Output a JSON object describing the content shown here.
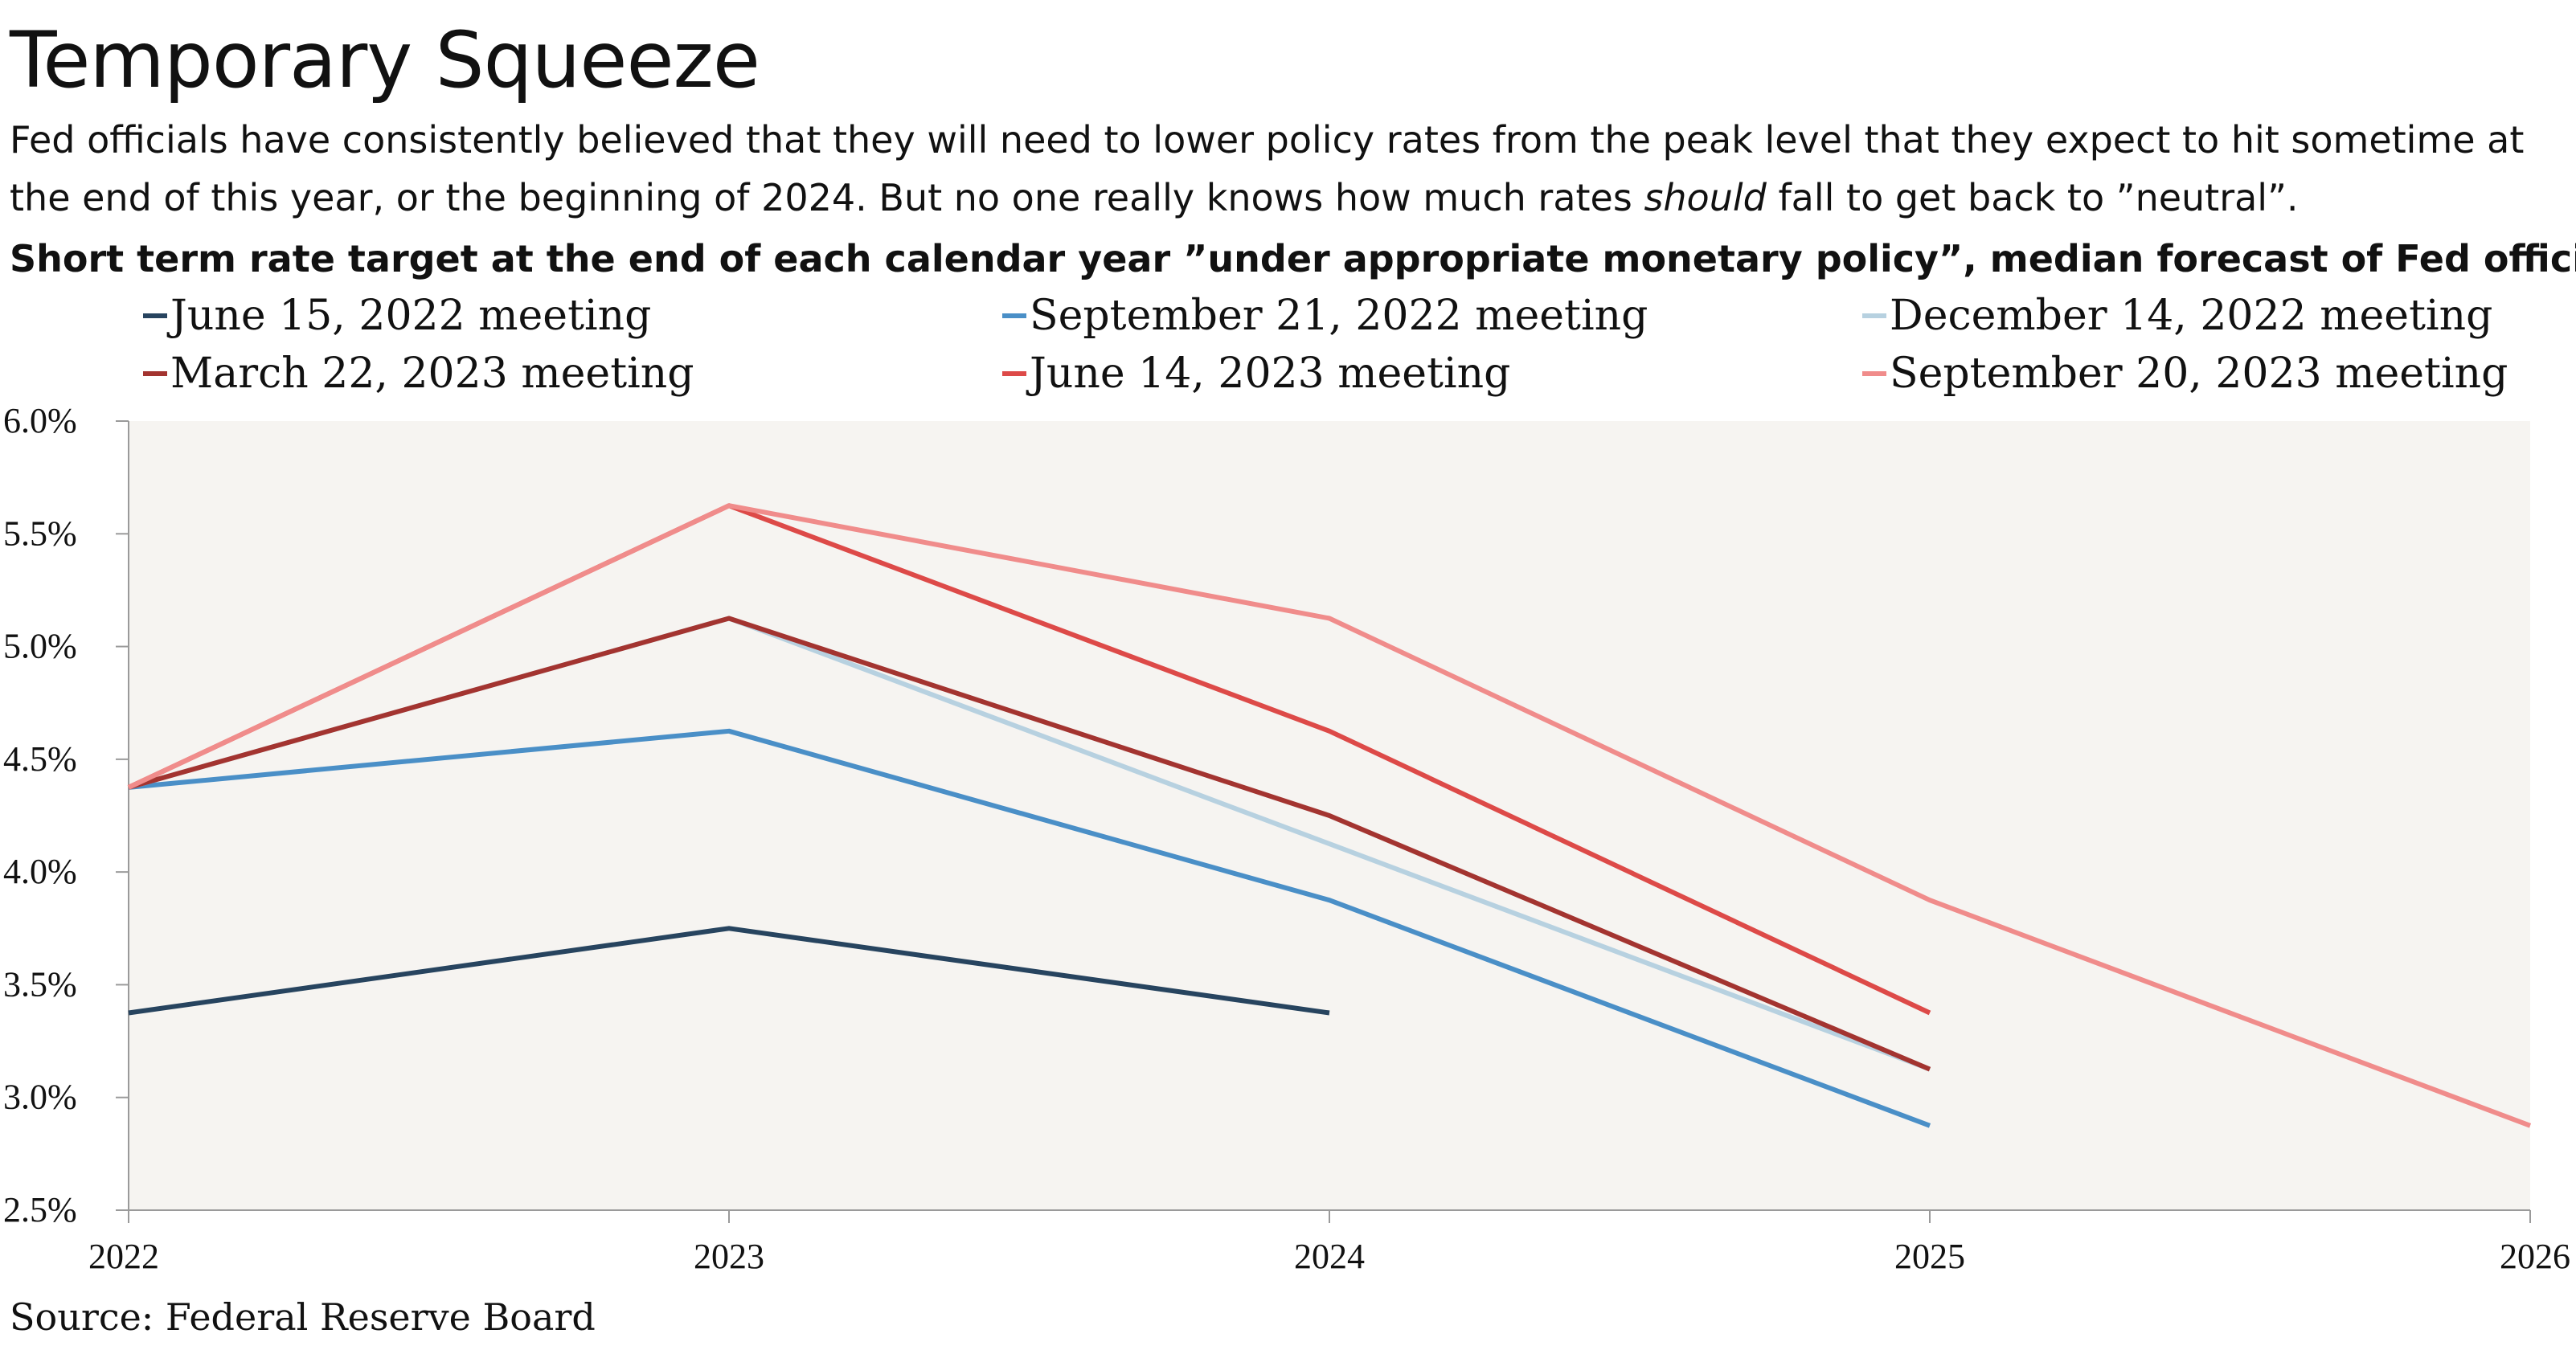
{
  "title": "Temporary Squeeze",
  "subtitle": {
    "part1": "Fed officials have consistently believed that they will need to lower policy rates from the peak level that they expect to hit sometime at the end of this year, or the beginning of 2024. But no one really knows how much rates ",
    "emphasis": "should",
    "part2": "  fall to get back to ”neutral”."
  },
  "chart_heading": "Short term rate target at the end of each calendar year ”under appropriate monetary policy”, median forecast of Fed officials",
  "source": "Source: Federal Reserve Board",
  "colors": {
    "plot_background": "#f6f4f1",
    "axis": "#9a9a9a"
  },
  "chart_data": {
    "type": "line",
    "x": [
      2022,
      2023,
      2024,
      2025,
      2026
    ],
    "xlim": [
      2022,
      2026
    ],
    "ylim": [
      2.5,
      6.0
    ],
    "yticks": [
      2.5,
      3.0,
      3.5,
      4.0,
      4.5,
      5.0,
      5.5,
      6.0
    ],
    "ytick_labels": [
      "2.5%",
      "3.0%",
      "3.5%",
      "4.0%",
      "4.5%",
      "5.0%",
      "5.5%",
      "6.0%"
    ],
    "xtick_labels": [
      "2022",
      "2023",
      "2024",
      "2025",
      "2026"
    ],
    "grid": false,
    "legend_position": "top",
    "series": [
      {
        "name": "June 15, 2022 meeting",
        "color": "#27445f",
        "values": [
          3.375,
          3.75,
          3.375,
          null,
          null
        ]
      },
      {
        "name": "September 21, 2022 meeting",
        "color": "#4a8fc7",
        "values": [
          4.375,
          4.625,
          3.875,
          2.875,
          null
        ]
      },
      {
        "name": "December 14, 2022 meeting",
        "color": "#b7d1e0",
        "values": [
          4.375,
          5.125,
          4.125,
          3.125,
          null
        ]
      },
      {
        "name": "March 22, 2023 meeting",
        "color": "#a33430",
        "values": [
          4.375,
          5.125,
          4.25,
          3.125,
          null
        ]
      },
      {
        "name": "June 14, 2023 meeting",
        "color": "#dd4a48",
        "values": [
          4.375,
          5.625,
          4.625,
          3.375,
          null
        ]
      },
      {
        "name": "September 20, 2023 meeting",
        "color": "#f08c8b",
        "values": [
          4.375,
          5.625,
          5.125,
          3.875,
          2.875
        ]
      }
    ]
  }
}
